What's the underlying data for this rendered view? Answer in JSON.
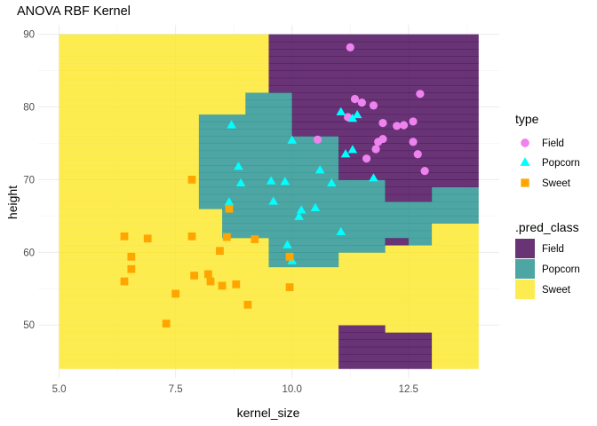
{
  "chart_data": {
    "type": "scatter",
    "title": "ANOVA RBF Kernel",
    "xlabel": "kernel_size",
    "ylabel": "height",
    "xlim": [
      4.55,
      14.45
    ],
    "ylim": [
      42.7,
      91.3
    ],
    "x_ticks": [
      5.0,
      7.5,
      10.0,
      12.5
    ],
    "x_tick_labels": [
      "5.0",
      "7.5",
      "10.0",
      "12.5"
    ],
    "y_ticks": [
      50,
      60,
      70,
      80,
      90
    ],
    "y_tick_labels": [
      "50",
      "60",
      "70",
      "80",
      "90"
    ],
    "grid": true,
    "legend_position": "right",
    "region_grid": {
      "x_start": 5.0,
      "x_step": 0.5,
      "y_start": 44.0,
      "y_step": 2.0,
      "cols": 18,
      "rows_bottom_to_top": [
        "SSSSSSSSSSSSSSSSSS",
        "SSSSSSSSSSPPFFFFFF",
        "SSSSSSSSSSSSFFFFFF",
        "SSSSSSSSSSSSFFFFFF",
        "SSSSSSSSSSSSFFFFSS",
        "SSSSSSSSSSSSFFFFSS",
        "SSSSSSSSSSSSFFFFSS",
        "SSSSSSSSSSSSFFFFSS",
        "SSSSSSSSSSSSSSSSSS",
        "SSSSSSSSSSSSSSSSSS",
        "SSSSSSSSPPPPPPSSSS",
        "SSSSSSSSSPPPPPPSSS",
        "SSSSSSSSSPPPPPPPPP",
        "SSSSSSSPPPPPPPPPPP",
        "SSSSSSPPPPPPPPPPPP",
        "SSSSSSPPPPPPPPPPPP",
        "SSSSSSPPPPPPPPPPPP",
        "SSSSSSPPPPPPPPPPPP",
        "SSSSSSPPPPPPPPPPPP",
        "SSSSSSPPPPPPPPPFFF",
        "SSSSSSPPPPPPPPPFFF",
        "SSSSSSPPPPPPPPPFFF",
        "SSSSSSPPPPPPPFFFFF",
        "SSSSSSPPPPPPPFFFFF",
        "SSSSSSPPPPPPPFFFFF",
        "SSSSSSPPPPFFFFFFFF",
        "SSSSSSPPPPFFFFFFFF",
        "SSSSSSPPPPFFFFFFFF",
        "SSSSSSPPPPFFFFFFFF",
        "SSSSSSSSFFFFFFFFFF",
        "SSSSSSSSFFFFFFFFFF",
        "SSSSSSSSFFFFFFFFFF",
        "SSSSSSSSFFFFFFFFFF"
      ]
    },
    "region_fix_ups": [
      {
        "x0": 11.0,
        "x1": 12.0,
        "y0": 44.0,
        "y1": 50.0,
        "class": "F"
      },
      {
        "x0": 12.0,
        "x1": 13.0,
        "y0": 44.0,
        "y1": 49.0,
        "class": "F"
      },
      {
        "x0": 10.0,
        "x1": 11.0,
        "y0": 44.0,
        "y1": 46.0,
        "class": "P"
      },
      {
        "x0": 13.0,
        "x1": 14.0,
        "y0": 44.0,
        "y1": 64.0,
        "class": "S"
      },
      {
        "x0": 12.0,
        "x1": 13.0,
        "y0": 49.0,
        "y1": 61.0,
        "class": "S"
      },
      {
        "x0": 11.0,
        "x1": 12.0,
        "y0": 50.0,
        "y1": 60.0,
        "class": "S"
      },
      {
        "x0": 8.0,
        "x1": 11.0,
        "y0": 44.0,
        "y1": 58.0,
        "class": "S"
      },
      {
        "x0": 10.0,
        "x1": 11.0,
        "y0": 46.0,
        "y1": 58.0,
        "class": "S"
      },
      {
        "x0": 5.0,
        "x1": 8.0,
        "y0": 44.0,
        "y1": 90.0,
        "class": "S"
      },
      {
        "x0": 8.0,
        "x1": 9.5,
        "y0": 79.0,
        "y1": 90.0,
        "class": "S"
      },
      {
        "x0": 9.5,
        "x1": 14.0,
        "y0": 82.0,
        "y1": 90.0,
        "class": "F"
      },
      {
        "x0": 9.5,
        "x1": 10.0,
        "y0": 79.0,
        "y1": 82.0,
        "class": "F"
      },
      {
        "x0": 8.5,
        "x1": 10.0,
        "y0": 79.0,
        "y1": 82.0,
        "class": "S"
      },
      {
        "x0": 8.0,
        "x1": 9.0,
        "y0": 66.0,
        "y1": 79.0,
        "class": "P"
      },
      {
        "x0": 9.0,
        "x1": 10.0,
        "y0": 58.0,
        "y1": 82.0,
        "class": "P"
      },
      {
        "x0": 10.0,
        "x1": 11.0,
        "y0": 76.0,
        "y1": 82.0,
        "class": "F"
      },
      {
        "x0": 10.0,
        "x1": 11.0,
        "y0": 58.0,
        "y1": 76.0,
        "class": "P"
      },
      {
        "x0": 11.0,
        "x1": 12.0,
        "y0": 60.0,
        "y1": 70.0,
        "class": "P"
      },
      {
        "x0": 11.0,
        "x1": 12.0,
        "y0": 70.0,
        "y1": 90.0,
        "class": "F"
      },
      {
        "x0": 12.0,
        "x1": 12.5,
        "y0": 67.0,
        "y1": 70.0,
        "class": "P"
      },
      {
        "x0": 12.0,
        "x1": 12.5,
        "y0": 61.0,
        "y1": 62.0,
        "class": "F"
      },
      {
        "x0": 12.0,
        "x1": 12.5,
        "y0": 62.0,
        "y1": 67.0,
        "class": "P"
      },
      {
        "x0": 12.5,
        "x1": 13.0,
        "y0": 61.0,
        "y1": 67.0,
        "class": "P"
      },
      {
        "x0": 12.0,
        "x1": 13.0,
        "y0": 67.0,
        "y1": 90.0,
        "class": "F"
      },
      {
        "x0": 13.0,
        "x1": 14.0,
        "y0": 64.0,
        "y1": 69.0,
        "class": "P"
      },
      {
        "x0": 13.0,
        "x1": 14.0,
        "y0": 69.0,
        "y1": 90.0,
        "class": "F"
      },
      {
        "x0": 8.0,
        "x1": 8.5,
        "y0": 58.0,
        "y1": 66.0,
        "class": "S"
      },
      {
        "x0": 8.5,
        "x1": 9.0,
        "y0": 62.0,
        "y1": 66.0,
        "class": "P"
      },
      {
        "x0": 9.0,
        "x1": 9.5,
        "y0": 58.0,
        "y1": 62.0,
        "class": "S"
      },
      {
        "x0": 9.5,
        "x1": 10.0,
        "y0": 58.0,
        "y1": 62.0,
        "class": "P"
      },
      {
        "x0": 12.0,
        "x1": 12.5,
        "y0": 49.0,
        "y1": 61.0,
        "class": "S"
      }
    ],
    "class_colors": {
      "F": "#440154",
      "P": "#21908C",
      "S": "#FDE725"
    },
    "region_opacity": 0.8,
    "series": [
      {
        "name": "Field",
        "shape": "circle",
        "color": "#EE82EE",
        "points": [
          [
            11.25,
            88.2
          ],
          [
            12.75,
            81.8
          ],
          [
            11.35,
            81.1
          ],
          [
            11.5,
            80.6
          ],
          [
            11.75,
            80.2
          ],
          [
            11.2,
            78.6
          ],
          [
            12.6,
            78.0
          ],
          [
            12.4,
            77.5
          ],
          [
            12.25,
            77.4
          ],
          [
            11.95,
            77.8
          ],
          [
            10.55,
            75.5
          ],
          [
            11.95,
            75.6
          ],
          [
            11.85,
            75.2
          ],
          [
            12.6,
            75.2
          ],
          [
            11.8,
            74.2
          ],
          [
            12.7,
            73.5
          ],
          [
            11.6,
            72.9
          ],
          [
            12.85,
            71.2
          ]
        ]
      },
      {
        "name": "Popcorn",
        "shape": "triangle",
        "color": "#00FFFF",
        "points": [
          [
            8.7,
            77.5
          ],
          [
            11.05,
            79.3
          ],
          [
            11.4,
            78.9
          ],
          [
            11.3,
            78.4
          ],
          [
            10.0,
            75.4
          ],
          [
            11.3,
            74.1
          ],
          [
            11.15,
            73.5
          ],
          [
            8.85,
            71.8
          ],
          [
            10.6,
            71.3
          ],
          [
            8.9,
            69.5
          ],
          [
            9.55,
            69.8
          ],
          [
            9.85,
            69.7
          ],
          [
            10.85,
            69.5
          ],
          [
            11.75,
            70.2
          ],
          [
            9.6,
            67.0
          ],
          [
            10.5,
            66.1
          ],
          [
            10.2,
            65.8
          ],
          [
            10.15,
            64.9
          ],
          [
            9.9,
            61.0
          ],
          [
            11.05,
            62.8
          ],
          [
            10.0,
            58.8
          ],
          [
            8.65,
            66.9
          ]
        ]
      },
      {
        "name": "Sweet",
        "shape": "square",
        "color": "#FFA500",
        "points": [
          [
            7.85,
            70.0
          ],
          [
            8.65,
            66.0
          ],
          [
            6.4,
            62.2
          ],
          [
            6.9,
            61.9
          ],
          [
            7.85,
            62.2
          ],
          [
            8.6,
            62.1
          ],
          [
            9.2,
            61.8
          ],
          [
            8.45,
            60.2
          ],
          [
            6.55,
            59.4
          ],
          [
            9.95,
            59.4
          ],
          [
            6.55,
            57.7
          ],
          [
            7.9,
            56.8
          ],
          [
            8.2,
            57.0
          ],
          [
            8.25,
            56.0
          ],
          [
            6.4,
            56.0
          ],
          [
            8.5,
            55.4
          ],
          [
            8.8,
            55.6
          ],
          [
            9.95,
            55.2
          ],
          [
            7.5,
            54.3
          ],
          [
            9.05,
            52.8
          ],
          [
            7.3,
            50.2
          ]
        ]
      }
    ],
    "legends": [
      {
        "title": "type",
        "items": [
          {
            "label": "Field",
            "shape": "circle",
            "color": "#EE82EE"
          },
          {
            "label": "Popcorn",
            "shape": "triangle",
            "color": "#00FFFF"
          },
          {
            "label": "Sweet",
            "shape": "square",
            "color": "#FFA500"
          }
        ]
      },
      {
        "title": ".pred_class",
        "items": [
          {
            "label": "Field",
            "shape": "tile",
            "color": "#440154"
          },
          {
            "label": "Popcorn",
            "shape": "tile",
            "color": "#21908C"
          },
          {
            "label": "Sweet",
            "shape": "tile",
            "color": "#FDE725"
          }
        ]
      }
    ]
  }
}
